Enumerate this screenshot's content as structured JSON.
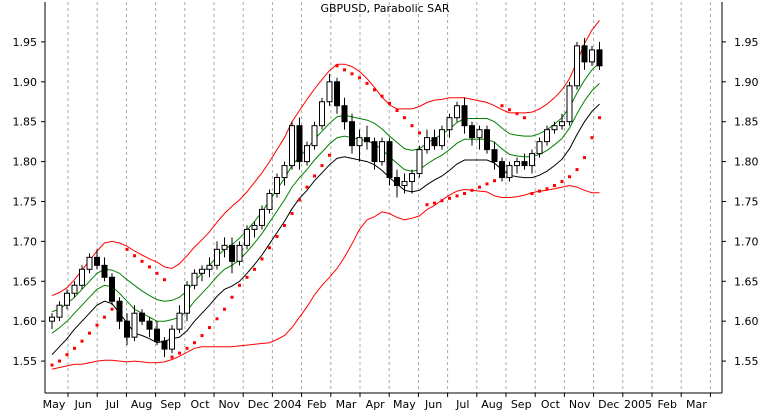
{
  "chart_data": {
    "type": "candlestick",
    "title": "GBPUSD, Parabolic SAR",
    "y_ticks": [
      1.55,
      1.6,
      1.65,
      1.7,
      1.75,
      1.8,
      1.85,
      1.9,
      1.95
    ],
    "y_range": [
      1.51,
      2.0
    ],
    "x_labels": [
      "May",
      "Jun",
      "Jul",
      "Aug",
      "Sep",
      "Oct",
      "Nov",
      "Dec",
      "2004",
      "Feb",
      "Mar",
      "Apr",
      "May",
      "Jun",
      "Jul",
      "Aug",
      "Sep",
      "Oct",
      "Nov",
      "Dec",
      "2005",
      "Feb",
      "Mar"
    ],
    "grid": "vertical dashed",
    "colors": {
      "sar": "#ff0000",
      "bands": "#ff0000",
      "ma": "#008000",
      "candle": "#000000",
      "grid": "#aaaaaa"
    },
    "ohlc": [
      [
        1.6,
        1.61,
        1.59,
        1.605
      ],
      [
        1.605,
        1.625,
        1.6,
        1.62
      ],
      [
        1.62,
        1.64,
        1.615,
        1.635
      ],
      [
        1.635,
        1.65,
        1.63,
        1.645
      ],
      [
        1.645,
        1.67,
        1.64,
        1.665
      ],
      [
        1.665,
        1.685,
        1.66,
        1.68
      ],
      [
        1.68,
        1.69,
        1.665,
        1.67
      ],
      [
        1.67,
        1.68,
        1.65,
        1.655
      ],
      [
        1.655,
        1.66,
        1.62,
        1.625
      ],
      [
        1.625,
        1.63,
        1.59,
        1.6
      ],
      [
        1.6,
        1.61,
        1.57,
        1.58
      ],
      [
        1.58,
        1.62,
        1.575,
        1.61
      ],
      [
        1.61,
        1.615,
        1.595,
        1.6
      ],
      [
        1.6,
        1.605,
        1.58,
        1.59
      ],
      [
        1.59,
        1.6,
        1.57,
        1.575
      ],
      [
        1.575,
        1.58,
        1.555,
        1.565
      ],
      [
        1.565,
        1.595,
        1.56,
        1.59
      ],
      [
        1.59,
        1.62,
        1.585,
        1.61
      ],
      [
        1.61,
        1.65,
        1.6,
        1.645
      ],
      [
        1.645,
        1.665,
        1.64,
        1.66
      ],
      [
        1.66,
        1.67,
        1.65,
        1.665
      ],
      [
        1.665,
        1.68,
        1.655,
        1.67
      ],
      [
        1.67,
        1.7,
        1.665,
        1.69
      ],
      [
        1.69,
        1.705,
        1.68,
        1.695
      ],
      [
        1.695,
        1.705,
        1.66,
        1.675
      ],
      [
        1.675,
        1.7,
        1.67,
        1.695
      ],
      [
        1.695,
        1.72,
        1.69,
        1.715
      ],
      [
        1.715,
        1.725,
        1.705,
        1.72
      ],
      [
        1.72,
        1.745,
        1.715,
        1.74
      ],
      [
        1.74,
        1.765,
        1.735,
        1.76
      ],
      [
        1.76,
        1.785,
        1.755,
        1.78
      ],
      [
        1.78,
        1.8,
        1.77,
        1.795
      ],
      [
        1.795,
        1.85,
        1.79,
        1.845
      ],
      [
        1.845,
        1.855,
        1.79,
        1.8
      ],
      [
        1.8,
        1.825,
        1.795,
        1.82
      ],
      [
        1.82,
        1.85,
        1.815,
        1.845
      ],
      [
        1.845,
        1.88,
        1.84,
        1.875
      ],
      [
        1.875,
        1.91,
        1.87,
        1.9
      ],
      [
        1.9,
        1.905,
        1.86,
        1.87
      ],
      [
        1.87,
        1.88,
        1.84,
        1.85
      ],
      [
        1.85,
        1.86,
        1.81,
        1.82
      ],
      [
        1.82,
        1.84,
        1.8,
        1.83
      ],
      [
        1.83,
        1.845,
        1.815,
        1.825
      ],
      [
        1.825,
        1.83,
        1.79,
        1.8
      ],
      [
        1.8,
        1.83,
        1.795,
        1.825
      ],
      [
        1.825,
        1.83,
        1.77,
        1.78
      ],
      [
        1.78,
        1.79,
        1.755,
        1.77
      ],
      [
        1.77,
        1.785,
        1.76,
        1.775
      ],
      [
        1.775,
        1.79,
        1.76,
        1.785
      ],
      [
        1.785,
        1.82,
        1.78,
        1.815
      ],
      [
        1.815,
        1.84,
        1.81,
        1.83
      ],
      [
        1.83,
        1.84,
        1.815,
        1.82
      ],
      [
        1.82,
        1.845,
        1.815,
        1.84
      ],
      [
        1.84,
        1.86,
        1.83,
        1.855
      ],
      [
        1.855,
        1.875,
        1.85,
        1.87
      ],
      [
        1.87,
        1.88,
        1.835,
        1.845
      ],
      [
        1.845,
        1.85,
        1.82,
        1.83
      ],
      [
        1.83,
        1.845,
        1.815,
        1.84
      ],
      [
        1.84,
        1.845,
        1.81,
        1.815
      ],
      [
        1.815,
        1.825,
        1.79,
        1.8
      ],
      [
        1.8,
        1.805,
        1.775,
        1.78
      ],
      [
        1.78,
        1.8,
        1.775,
        1.795
      ],
      [
        1.795,
        1.805,
        1.785,
        1.8
      ],
      [
        1.8,
        1.81,
        1.79,
        1.795
      ],
      [
        1.795,
        1.815,
        1.785,
        1.81
      ],
      [
        1.81,
        1.83,
        1.805,
        1.825
      ],
      [
        1.825,
        1.845,
        1.82,
        1.84
      ],
      [
        1.84,
        1.85,
        1.835,
        1.845
      ],
      [
        1.845,
        1.86,
        1.84,
        1.85
      ],
      [
        1.85,
        1.9,
        1.845,
        1.895
      ],
      [
        1.895,
        1.95,
        1.89,
        1.945
      ],
      [
        1.945,
        1.955,
        1.915,
        1.925
      ],
      [
        1.925,
        1.945,
        1.92,
        1.94
      ],
      [
        1.94,
        1.95,
        1.915,
        1.92
      ]
    ],
    "sar": [
      1.545,
      1.55,
      1.558,
      1.566,
      1.575,
      1.585,
      1.595,
      1.605,
      1.615,
      1.62,
      1.69,
      1.682,
      1.675,
      1.668,
      1.66,
      1.652,
      1.555,
      1.56,
      1.566,
      1.573,
      1.582,
      1.592,
      1.603,
      1.615,
      1.63,
      1.645,
      1.655,
      1.665,
      1.678,
      1.692,
      1.706,
      1.72,
      1.735,
      1.752,
      1.768,
      1.782,
      1.795,
      1.808,
      1.92,
      1.915,
      1.91,
      1.905,
      1.898,
      1.89,
      1.882,
      1.873,
      1.864,
      1.855,
      1.845,
      1.836,
      1.746,
      1.748,
      1.751,
      1.754,
      1.757,
      1.76,
      1.764,
      1.768,
      1.772,
      1.776,
      1.87,
      1.865,
      1.86,
      1.855,
      1.76,
      1.763,
      1.766,
      1.77,
      1.775,
      1.781,
      1.79,
      1.805,
      1.83,
      1.855
    ],
    "ma": [
      1.585,
      1.592,
      1.6,
      1.61,
      1.62,
      1.63,
      1.64,
      1.645,
      1.643,
      1.635,
      1.625,
      1.615,
      1.61,
      1.605,
      1.6,
      1.6,
      1.602,
      1.605,
      1.613,
      1.625,
      1.635,
      1.645,
      1.656,
      1.665,
      1.67,
      1.677,
      1.687,
      1.698,
      1.71,
      1.724,
      1.738,
      1.752,
      1.768,
      1.78,
      1.79,
      1.802,
      1.812,
      1.822,
      1.83,
      1.832,
      1.83,
      1.828,
      1.826,
      1.822,
      1.815,
      1.806,
      1.798,
      1.79,
      1.788,
      1.79,
      1.797,
      1.803,
      1.808,
      1.815,
      1.823,
      1.828,
      1.828,
      1.828,
      1.828,
      1.824,
      1.816,
      1.809,
      1.807,
      1.806,
      1.806,
      1.809,
      1.814,
      1.821,
      1.829,
      1.842,
      1.86,
      1.876,
      1.889,
      1.898
    ],
    "bb_upper": [
      1.632,
      1.636,
      1.642,
      1.652,
      1.664,
      1.676,
      1.688,
      1.698,
      1.7,
      1.698,
      1.694,
      1.688,
      1.683,
      1.678,
      1.674,
      1.668,
      1.666,
      1.672,
      1.682,
      1.693,
      1.702,
      1.712,
      1.724,
      1.735,
      1.744,
      1.752,
      1.762,
      1.774,
      1.786,
      1.8,
      1.815,
      1.83,
      1.85,
      1.864,
      1.878,
      1.891,
      1.903,
      1.914,
      1.922,
      1.922,
      1.919,
      1.913,
      1.904,
      1.893,
      1.881,
      1.871,
      1.866,
      1.866,
      1.866,
      1.869,
      1.874,
      1.877,
      1.878,
      1.88,
      1.88,
      1.88,
      1.878,
      1.876,
      1.874,
      1.87,
      1.865,
      1.861,
      1.861,
      1.861,
      1.862,
      1.866,
      1.872,
      1.88,
      1.89,
      1.904,
      1.925,
      1.948,
      1.965,
      1.977
    ],
    "bb_lower": [
      1.54,
      1.542,
      1.544,
      1.546,
      1.546,
      1.548,
      1.55,
      1.551,
      1.551,
      1.55,
      1.549,
      1.55,
      1.549,
      1.548,
      1.548,
      1.549,
      1.552,
      1.556,
      1.561,
      1.566,
      1.568,
      1.568,
      1.568,
      1.568,
      1.568,
      1.569,
      1.57,
      1.571,
      1.572,
      1.573,
      1.577,
      1.582,
      1.592,
      1.605,
      1.618,
      1.633,
      1.645,
      1.655,
      1.666,
      1.68,
      1.697,
      1.715,
      1.727,
      1.731,
      1.737,
      1.735,
      1.73,
      1.727,
      1.729,
      1.732,
      1.74,
      1.745,
      1.752,
      1.758,
      1.763,
      1.765,
      1.764,
      1.763,
      1.762,
      1.757,
      1.755,
      1.755,
      1.756,
      1.758,
      1.761,
      1.763,
      1.764,
      1.766,
      1.768,
      1.77,
      1.768,
      1.764,
      1.761,
      1.761
    ],
    "bb_inner_upper": [
      1.612,
      1.615,
      1.622,
      1.63,
      1.64,
      1.65,
      1.66,
      1.665,
      1.664,
      1.66,
      1.652,
      1.645,
      1.638,
      1.632,
      1.627,
      1.625,
      1.626,
      1.63,
      1.638,
      1.65,
      1.66,
      1.67,
      1.681,
      1.69,
      1.696,
      1.704,
      1.714,
      1.725,
      1.737,
      1.751,
      1.765,
      1.779,
      1.795,
      1.806,
      1.816,
      1.828,
      1.838,
      1.848,
      1.856,
      1.858,
      1.856,
      1.854,
      1.852,
      1.848,
      1.841,
      1.832,
      1.824,
      1.816,
      1.814,
      1.816,
      1.823,
      1.829,
      1.834,
      1.841,
      1.849,
      1.854,
      1.854,
      1.854,
      1.854,
      1.85,
      1.842,
      1.835,
      1.833,
      1.832,
      1.832,
      1.835,
      1.84,
      1.847,
      1.855,
      1.868,
      1.886,
      1.902,
      1.915,
      1.924
    ],
    "bb_inner_lower": [
      1.558,
      1.568,
      1.578,
      1.59,
      1.6,
      1.61,
      1.62,
      1.625,
      1.622,
      1.61,
      1.598,
      1.585,
      1.582,
      1.578,
      1.573,
      1.575,
      1.578,
      1.58,
      1.588,
      1.6,
      1.61,
      1.62,
      1.631,
      1.64,
      1.644,
      1.65,
      1.66,
      1.671,
      1.683,
      1.697,
      1.711,
      1.725,
      1.741,
      1.754,
      1.764,
      1.776,
      1.786,
      1.796,
      1.804,
      1.806,
      1.804,
      1.802,
      1.8,
      1.796,
      1.789,
      1.78,
      1.772,
      1.764,
      1.762,
      1.764,
      1.771,
      1.777,
      1.782,
      1.789,
      1.797,
      1.802,
      1.802,
      1.802,
      1.802,
      1.798,
      1.79,
      1.783,
      1.781,
      1.78,
      1.78,
      1.783,
      1.788,
      1.795,
      1.803,
      1.816,
      1.834,
      1.85,
      1.863,
      1.872
    ]
  }
}
